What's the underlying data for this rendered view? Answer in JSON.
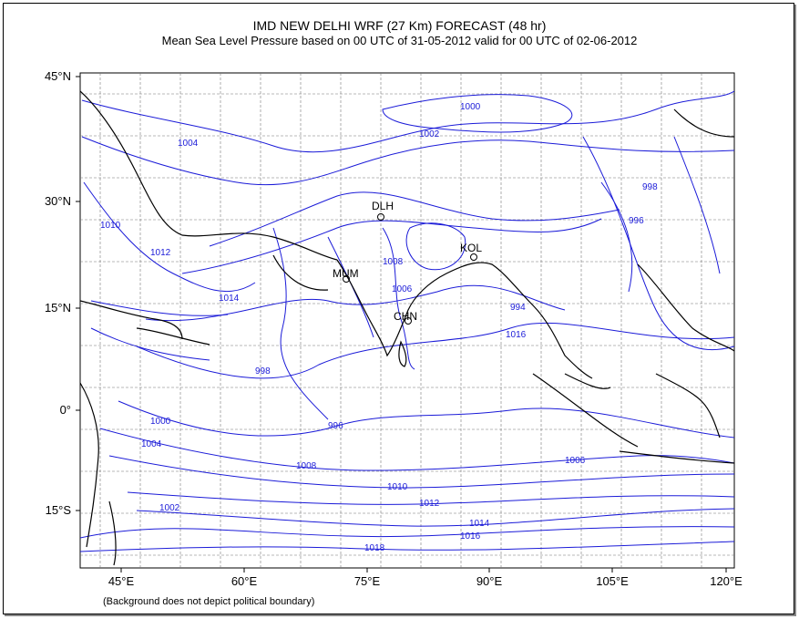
{
  "header": {
    "title": "IMD NEW DELHI  WRF (27 Km)  FORECAST  (48 hr)",
    "subtitle": "Mean Sea Level Pressure based on 00 UTC of 31-05-2012 valid for 00 UTC of 02-06-2012"
  },
  "footer_note": "(Background does not depict political boundary)",
  "axes": {
    "lat_labels": [
      "45°N",
      "30°N",
      "15°N",
      "0°",
      "15°S"
    ],
    "lon_labels": [
      "45°E",
      "60°E",
      "75°E",
      "90°E",
      "105°E",
      "120°E"
    ]
  },
  "stations": [
    {
      "label": "DLH"
    },
    {
      "label": "KOL"
    },
    {
      "label": "MUM"
    },
    {
      "label": "CHN"
    }
  ],
  "isobar_labels": [
    "1018",
    "1016",
    "1014",
    "1012",
    "1010",
    "1008",
    "1006",
    "1004",
    "1002",
    "1000",
    "998",
    "996",
    "994",
    "1016",
    "1014",
    "1012",
    "1010",
    "1008",
    "1006",
    "1004",
    "1002",
    "1000",
    "998",
    "996"
  ],
  "colors": {
    "isobar": "#1b1bd8",
    "coast": "#000000",
    "grid": "#666666"
  }
}
